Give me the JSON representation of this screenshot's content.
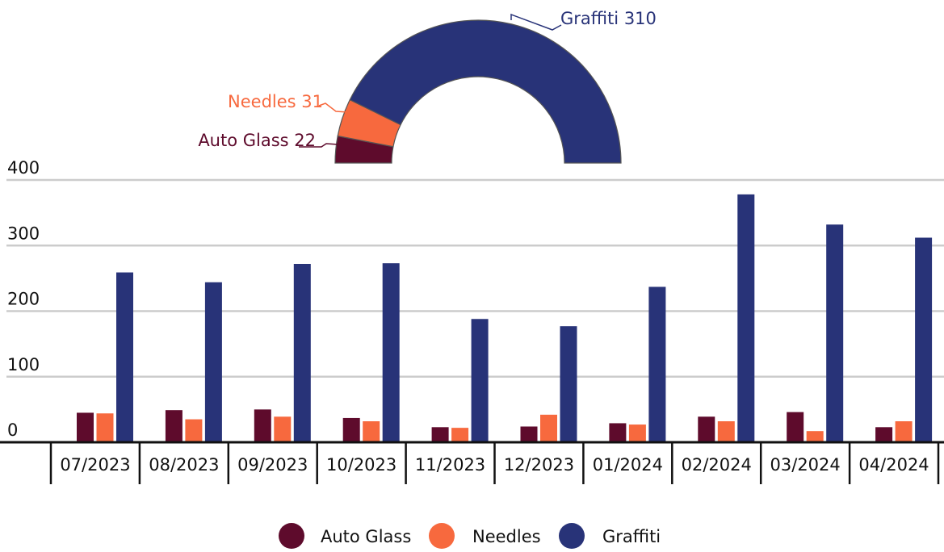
{
  "chart_data": [
    {
      "type": "pie",
      "variant": "half-donut",
      "slices": [
        {
          "name": "Auto Glass",
          "value": 22,
          "label": "Auto Glass 22",
          "color": "#5e0b2c"
        },
        {
          "name": "Needles",
          "value": 31,
          "label": "Needles 31",
          "color": "#f7693e"
        },
        {
          "name": "Graffiti",
          "value": 310,
          "label": "Graffiti 310",
          "color": "#283378"
        }
      ]
    },
    {
      "type": "bar",
      "categories": [
        "07/2023",
        "08/2023",
        "09/2023",
        "10/2023",
        "11/2023",
        "12/2023",
        "01/2024",
        "02/2024",
        "03/2024",
        "04/2024"
      ],
      "series": [
        {
          "name": "Auto Glass",
          "color": "#5e0b2c",
          "values": [
            45,
            49,
            50,
            37,
            23,
            24,
            29,
            39,
            46,
            23
          ]
        },
        {
          "name": "Needles",
          "color": "#f7693e",
          "values": [
            44,
            35,
            39,
            32,
            22,
            42,
            27,
            32,
            17,
            32
          ]
        },
        {
          "name": "Graffiti",
          "color": "#283378",
          "values": [
            259,
            244,
            272,
            273,
            188,
            177,
            237,
            378,
            332,
            312
          ]
        }
      ],
      "ylim": [
        0,
        400
      ],
      "yticks": [
        "0",
        "100",
        "200",
        "300",
        "400"
      ],
      "grid": true,
      "legend": {
        "position": "bottom-center",
        "entries": [
          "Auto Glass",
          "Needles",
          "Graffiti"
        ]
      }
    }
  ]
}
